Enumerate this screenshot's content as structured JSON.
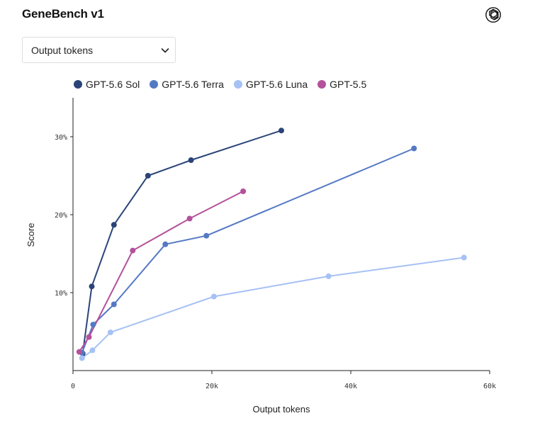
{
  "header": {
    "title": "GeneBench v1",
    "logo_icon": "openai-logo-icon"
  },
  "metric_select": {
    "value": "Output tokens",
    "icon": "chevron-down-icon"
  },
  "chart_data": {
    "type": "line",
    "xlabel": "Output tokens",
    "ylabel": "Score",
    "xlim": [
      0,
      60000
    ],
    "ylim": [
      0,
      35
    ],
    "xticks": [
      0,
      20000,
      40000,
      60000
    ],
    "xtick_labels": [
      "0",
      "20k",
      "40k",
      "60k"
    ],
    "yticks": [
      10,
      20,
      30
    ],
    "ytick_labels": [
      "10%",
      "20%",
      "30%"
    ],
    "grid": false,
    "legend_position": "top-left",
    "series": [
      {
        "name": "GPT-5.6 Sol",
        "color": "#2b4478",
        "x": [
          1400,
          2700,
          5900,
          10800,
          17000,
          30000
        ],
        "y": [
          2.2,
          10.8,
          18.7,
          25.0,
          27.0,
          30.8
        ]
      },
      {
        "name": "GPT-5.6 Terra",
        "color": "#5479c4",
        "x": [
          1300,
          2900,
          5900,
          13300,
          19200,
          49100
        ],
        "y": [
          2.3,
          5.9,
          8.5,
          16.2,
          17.3,
          28.5
        ]
      },
      {
        "name": "GPT-5.6 Luna",
        "color": "#a6c1f4",
        "x": [
          1300,
          2800,
          5400,
          20300,
          36800,
          56300
        ],
        "y": [
          1.6,
          2.6,
          4.9,
          9.5,
          12.1,
          14.5
        ]
      },
      {
        "name": "GPT-5.5",
        "color": "#b4519b",
        "x": [
          900,
          2300,
          8600,
          16800,
          24500
        ],
        "y": [
          2.4,
          4.3,
          15.4,
          19.5,
          23.0
        ]
      }
    ]
  }
}
